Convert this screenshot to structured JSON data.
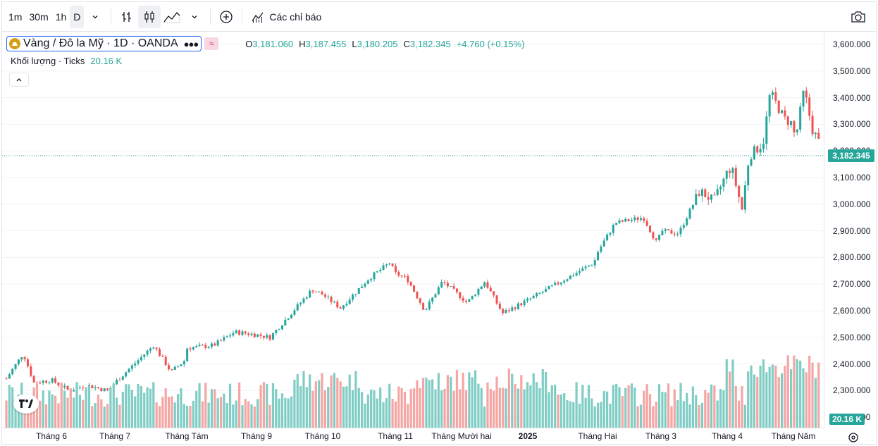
{
  "toolbar": {
    "intervals": [
      "1m",
      "30m",
      "1h",
      "D"
    ],
    "active_interval": "D",
    "indicators_label": "Các chỉ báo"
  },
  "legend": {
    "symbol": "Vàng / Đô la Mỹ · 1D · OANDA",
    "o_label": "O",
    "o_value": "3,181.060",
    "h_label": "H",
    "h_value": "3,187.455",
    "l_label": "L",
    "l_value": "3,180.205",
    "c_label": "C",
    "c_value": "3,182.345",
    "change": "+4.760 (+0.15%)"
  },
  "volume_legend": {
    "label": "Khối lượng · Ticks",
    "value": "20.16 K"
  },
  "price_axis": [
    "3,600.000",
    "3,500.000",
    "3,400.000",
    "3,300.000",
    "3,200.000",
    "3,100.000",
    "3,000.000",
    "2,900.000",
    "2,800.000",
    "2,700.000",
    "2,600.000",
    "2,500.000",
    "2,400.000",
    "2,300.000",
    "2,200.000"
  ],
  "last_price_tag": "3,182.345",
  "volume_tag": "20.16 K",
  "time_axis": [
    "Tháng 6",
    "Tháng 7",
    "Tháng Tám",
    "Tháng 9",
    "Tháng 10",
    "Tháng 11",
    "Tháng Mười hai",
    "2025",
    "Tháng Hai",
    "Tháng 3",
    "Tháng 4",
    "Tháng Năm"
  ],
  "colors": {
    "up": "#26a69a",
    "down": "#ef5350",
    "up_volume": "#7fcdc4",
    "down_volume": "#f4a6a4",
    "grid": "#f0f3fa",
    "price_line": "#26a69a"
  },
  "chart_data": {
    "type": "candlestick",
    "title": "Vàng / Đô la Mỹ · 1D · OANDA",
    "ylim": [
      2200,
      3600
    ],
    "last_close": 3182.345,
    "close_anchors": [
      [
        "Tháng 6",
        2340
      ],
      [
        "Tháng 7",
        2330
      ],
      [
        "Tháng Tám",
        2420
      ],
      [
        "Tháng 9",
        2510
      ],
      [
        "Tháng 10",
        2660
      ],
      [
        "Tháng 11",
        2740
      ],
      [
        "Tháng Mười hai",
        2650
      ],
      [
        "2025",
        2640
      ],
      [
        "Tháng Hai",
        2820
      ],
      [
        "Tháng 3",
        2900
      ],
      [
        "Tháng 4",
        3120
      ],
      [
        "Tháng Năm",
        3300
      ]
    ],
    "volume_legend_value": "20.16 K"
  }
}
